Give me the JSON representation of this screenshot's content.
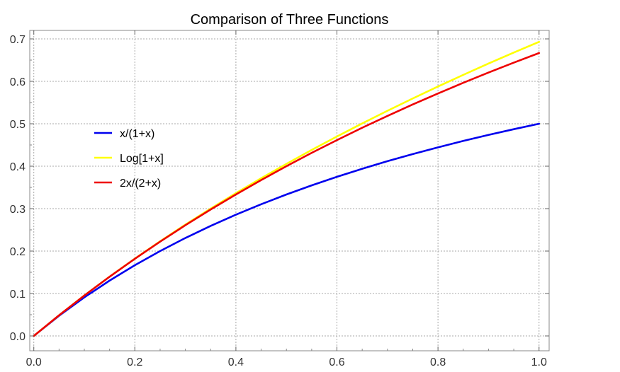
{
  "chart_data": {
    "type": "line",
    "title": "Comparison of Three Functions",
    "xlabel": "",
    "ylabel": "",
    "xlim": [
      -0.008,
      1.02
    ],
    "ylim": [
      -0.035,
      0.72
    ],
    "x_ticks": [
      0.0,
      0.2,
      0.4,
      0.6,
      0.8,
      1.0
    ],
    "x_tick_labels": [
      "0.0",
      "0.2",
      "0.4",
      "0.6",
      "0.8",
      "1.0"
    ],
    "y_ticks": [
      0.0,
      0.1,
      0.2,
      0.3,
      0.4,
      0.5,
      0.6,
      0.7
    ],
    "y_tick_labels": [
      "0.0",
      "0.1",
      "0.2",
      "0.3",
      "0.4",
      "0.5",
      "0.6",
      "0.7"
    ],
    "grid": true,
    "legend_position": "left",
    "x": [
      0.0,
      0.05,
      0.1,
      0.15,
      0.2,
      0.25,
      0.3,
      0.35,
      0.4,
      0.45,
      0.5,
      0.55,
      0.6,
      0.65,
      0.7,
      0.75,
      0.8,
      0.85,
      0.9,
      0.95,
      1.0
    ],
    "series": [
      {
        "name": "x/(1+x)",
        "color": "#0000ee",
        "values": [
          0.0,
          0.0476,
          0.0909,
          0.1304,
          0.1667,
          0.2,
          0.2308,
          0.2593,
          0.2857,
          0.3103,
          0.3333,
          0.3548,
          0.375,
          0.3939,
          0.4118,
          0.4286,
          0.4444,
          0.4595,
          0.4737,
          0.4872,
          0.5
        ]
      },
      {
        "name": "Log[1+x]",
        "color": "#ffff00",
        "values": [
          0.0,
          0.0488,
          0.0953,
          0.1398,
          0.1823,
          0.2231,
          0.2624,
          0.3001,
          0.3365,
          0.3716,
          0.4055,
          0.4383,
          0.47,
          0.5008,
          0.5306,
          0.5596,
          0.5878,
          0.6152,
          0.6419,
          0.6678,
          0.6931
        ]
      },
      {
        "name": "2x/(2+x)",
        "color": "#ee0000",
        "values": [
          0.0,
          0.0488,
          0.0952,
          0.1395,
          0.1818,
          0.2222,
          0.2609,
          0.2979,
          0.3333,
          0.3673,
          0.4,
          0.4314,
          0.4615,
          0.4906,
          0.5185,
          0.5455,
          0.5714,
          0.5965,
          0.6207,
          0.6441,
          0.6667
        ]
      }
    ]
  }
}
